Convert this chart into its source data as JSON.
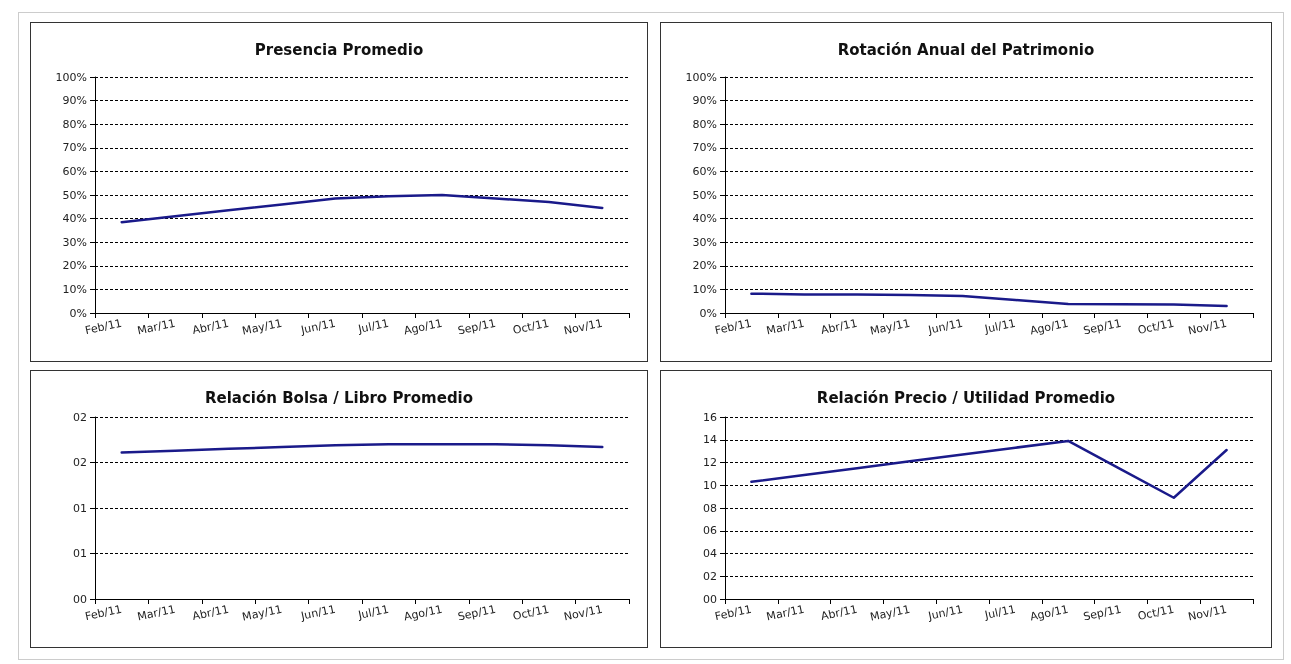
{
  "chart_data": [
    {
      "type": "line",
      "title": "Presencia Promedio",
      "categories": [
        "Feb/11",
        "Mar/11",
        "Abr/11",
        "May/11",
        "Jun/11",
        "Jul/11",
        "Ago/11",
        "Sep/11",
        "Oct/11",
        "Nov/11"
      ],
      "series": [
        {
          "color": "#1a1a8a",
          "values": [
            38.5,
            41,
            43.5,
            46,
            48.5,
            49.5,
            50,
            48.5,
            47,
            44.5
          ]
        }
      ],
      "ylim": [
        0,
        100
      ],
      "yticks": [
        {
          "value": 0,
          "label": "0%"
        },
        {
          "value": 10,
          "label": "10%"
        },
        {
          "value": 20,
          "label": "20%"
        },
        {
          "value": 30,
          "label": "30%"
        },
        {
          "value": 40,
          "label": "40%"
        },
        {
          "value": 50,
          "label": "50%"
        },
        {
          "value": 60,
          "label": "60%"
        },
        {
          "value": 70,
          "label": "70%"
        },
        {
          "value": 80,
          "label": "80%"
        },
        {
          "value": 90,
          "label": "90%"
        },
        {
          "value": 100,
          "label": "100%"
        }
      ],
      "grid": "y",
      "marker": "none",
      "line_style": "solid"
    },
    {
      "type": "line",
      "title": "Rotación Anual del Patrimonio",
      "categories": [
        "Feb/11",
        "Mar/11",
        "Abr/11",
        "May/11",
        "Jun/11",
        "Jul/11",
        "Ago/11",
        "Sep/11",
        "Oct/11",
        "Nov/11"
      ],
      "series": [
        {
          "color": "#1a1a8a",
          "values": [
            8.2,
            7.8,
            7.8,
            7.6,
            7.2,
            5.5,
            3.8,
            3.7,
            3.6,
            3.0
          ]
        }
      ],
      "ylim": [
        0,
        100
      ],
      "yticks": [
        {
          "value": 0,
          "label": "0%"
        },
        {
          "value": 10,
          "label": "10%"
        },
        {
          "value": 20,
          "label": "20%"
        },
        {
          "value": 30,
          "label": "30%"
        },
        {
          "value": 40,
          "label": "40%"
        },
        {
          "value": 50,
          "label": "50%"
        },
        {
          "value": 60,
          "label": "60%"
        },
        {
          "value": 70,
          "label": "70%"
        },
        {
          "value": 80,
          "label": "80%"
        },
        {
          "value": 90,
          "label": "90%"
        },
        {
          "value": 100,
          "label": "100%"
        }
      ],
      "grid": "y",
      "marker": "none",
      "line_style": "solid"
    },
    {
      "type": "line",
      "title": "Relación Bolsa / Libro Promedio",
      "categories": [
        "Feb/11",
        "Mar/11",
        "Abr/11",
        "May/11",
        "Jun/11",
        "Jul/11",
        "Ago/11",
        "Sep/11",
        "Oct/11",
        "Nov/11"
      ],
      "series": [
        {
          "color": "#1a1a8a",
          "values": [
            1.61,
            1.63,
            1.65,
            1.67,
            1.69,
            1.7,
            1.7,
            1.7,
            1.69,
            1.67
          ]
        }
      ],
      "ylim": [
        0,
        2
      ],
      "yticks": [
        {
          "value": 0,
          "label": "00"
        },
        {
          "value": 0.5,
          "label": "01"
        },
        {
          "value": 1,
          "label": "01"
        },
        {
          "value": 1.5,
          "label": "02"
        },
        {
          "value": 2,
          "label": "02"
        }
      ],
      "grid": "y",
      "marker": "none",
      "line_style": "solid"
    },
    {
      "type": "line",
      "title": "Relación Precio / Utilidad Promedio",
      "categories": [
        "Feb/11",
        "Mar/11",
        "Abr/11",
        "May/11",
        "Jun/11",
        "Jul/11",
        "Ago/11",
        "Sep/11",
        "Oct/11",
        "Nov/11"
      ],
      "series": [
        {
          "color": "#1a1a8a",
          "values": [
            10.3,
            10.9,
            11.5,
            12.1,
            12.7,
            13.3,
            13.9,
            11.4,
            8.9,
            13.1
          ]
        }
      ],
      "ylim": [
        0,
        16
      ],
      "yticks": [
        {
          "value": 0,
          "label": "00"
        },
        {
          "value": 2,
          "label": "02"
        },
        {
          "value": 4,
          "label": "04"
        },
        {
          "value": 6,
          "label": "06"
        },
        {
          "value": 8,
          "label": "08"
        },
        {
          "value": 10,
          "label": "10"
        },
        {
          "value": 12,
          "label": "12"
        },
        {
          "value": 14,
          "label": "14"
        },
        {
          "value": 16,
          "label": "16"
        }
      ],
      "grid": "y",
      "marker": "none",
      "line_style": "solid"
    }
  ]
}
